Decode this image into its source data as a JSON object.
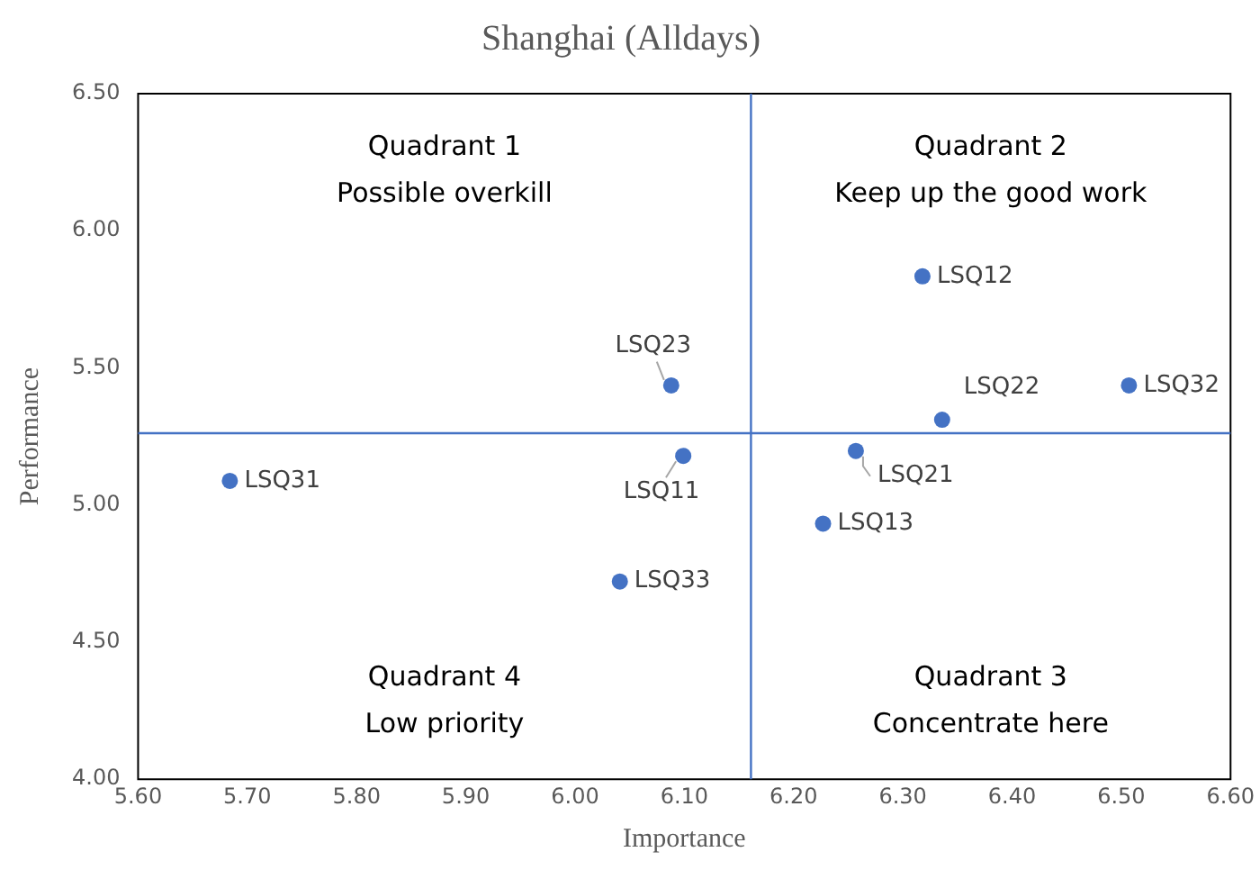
{
  "chart_data": {
    "type": "scatter",
    "title": "Shanghai (Alldays)",
    "xlabel": "Importance",
    "ylabel": "Performance",
    "x": [
      6.099,
      6.318,
      6.227,
      6.257,
      6.336,
      6.088,
      5.684,
      6.507,
      6.041
    ],
    "values": [
      5.179,
      5.834,
      4.932,
      5.197,
      5.311,
      5.436,
      5.088,
      5.436,
      4.721
    ],
    "color": "#4472c4",
    "marker": "circle",
    "grid": false,
    "legend": false,
    "xlim": [
      5.6,
      6.6
    ],
    "ylim": [
      4.0,
      6.5
    ],
    "xticks": [
      {
        "value": 5.6,
        "label": "5.60"
      },
      {
        "value": 5.7,
        "label": "5.70"
      },
      {
        "value": 5.8,
        "label": "5.80"
      },
      {
        "value": 5.9,
        "label": "5.90"
      },
      {
        "value": 6.0,
        "label": "6.00"
      },
      {
        "value": 6.1,
        "label": "6.10"
      },
      {
        "value": 6.2,
        "label": "6.20"
      },
      {
        "value": 6.3,
        "label": "6.30"
      },
      {
        "value": 6.4,
        "label": "6.40"
      },
      {
        "value": 6.5,
        "label": "6.50"
      },
      {
        "value": 6.6,
        "label": "6.60"
      }
    ],
    "yticks": [
      {
        "value": 4.0,
        "label": "4.00"
      },
      {
        "value": 4.5,
        "label": "4.50"
      },
      {
        "value": 5.0,
        "label": "5.00"
      },
      {
        "value": 5.5,
        "label": "5.50"
      },
      {
        "value": 6.0,
        "label": "6.00"
      },
      {
        "value": 6.5,
        "label": "6.50"
      }
    ],
    "ref_lines": [
      {
        "axis": "x",
        "value": 6.161,
        "color": "#4472c4"
      },
      {
        "axis": "y",
        "value": 5.262,
        "color": "#4472c4"
      }
    ],
    "annotations": [
      "Quadrant 1\nPossible overkill",
      "Quadrant 2\nKeep up the good work",
      "Quadrant 3\nConcentrate here",
      "Quadrant 4\nLow priority",
      {
        "text": "LSQ11",
        "x": 6.099,
        "y": 5.179
      },
      {
        "text": "LSQ12",
        "x": 6.318,
        "y": 5.834
      },
      {
        "text": "LSQ13",
        "x": 6.227,
        "y": 4.932
      },
      {
        "text": "LSQ21",
        "x": 6.257,
        "y": 5.197
      },
      {
        "text": "LSQ22",
        "x": 6.336,
        "y": 5.311
      },
      {
        "text": "LSQ23",
        "x": 6.088,
        "y": 5.436
      },
      {
        "text": "LSQ31",
        "x": 5.684,
        "y": 5.088
      },
      {
        "text": "LSQ32",
        "x": 6.507,
        "y": 5.436
      },
      {
        "text": "LSQ33",
        "x": 6.041,
        "y": 4.721
      }
    ]
  }
}
